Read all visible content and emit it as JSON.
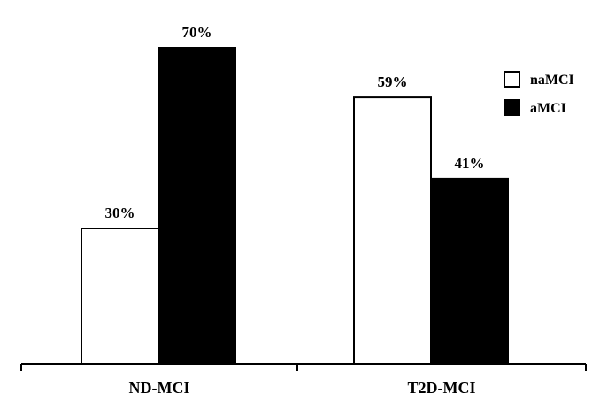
{
  "chart_data": {
    "type": "bar",
    "categories": [
      "ND-MCI",
      "T2D-MCI"
    ],
    "series": [
      {
        "name": "naMCI",
        "values": [
          30,
          59
        ],
        "labels": [
          "30%",
          "59%"
        ],
        "color": "#ffffff",
        "stroke": "#000000"
      },
      {
        "name": "aMCI",
        "values": [
          70,
          41
        ],
        "labels": [
          "70%",
          "41%"
        ],
        "color": "#000000",
        "stroke": "#000000"
      }
    ],
    "title": "",
    "xlabel": "",
    "ylabel": "",
    "ylim": [
      0,
      70
    ],
    "grid": false,
    "legend": "top-right"
  }
}
